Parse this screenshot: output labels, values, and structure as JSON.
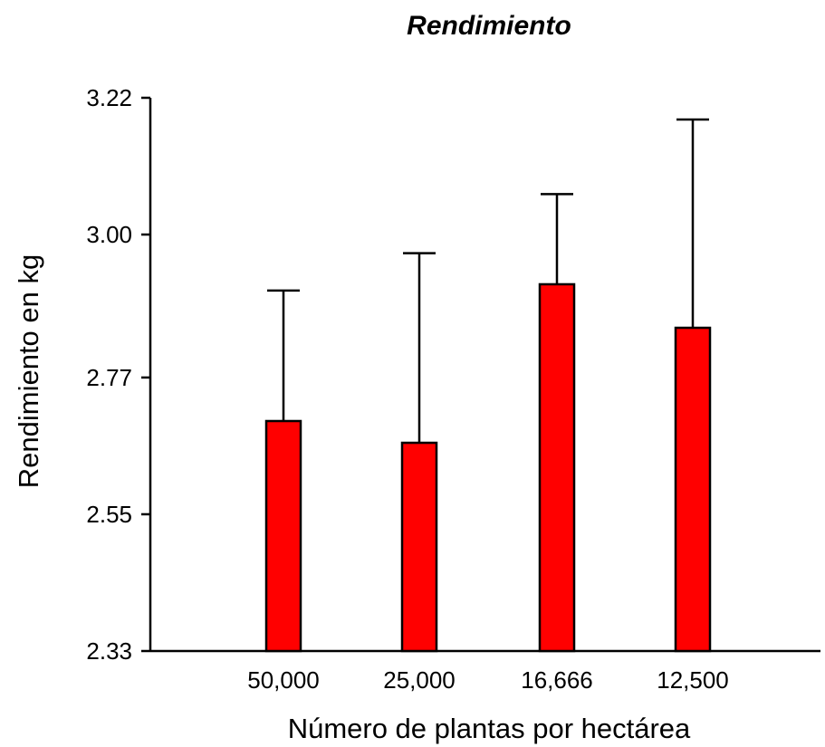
{
  "chart_data": {
    "type": "bar",
    "title": "Rendimiento",
    "xlabel": "Número de plantas por hectárea",
    "ylabel": "Rendimiento en kg",
    "categories": [
      "50,000",
      "25,000",
      "16,666",
      "12,500"
    ],
    "values": [
      2.7,
      2.665,
      2.92,
      2.85
    ],
    "error_upper": [
      2.91,
      2.97,
      3.065,
      3.185
    ],
    "ylim": [
      2.33,
      3.22
    ],
    "yticks": [
      "2.33",
      "2.55",
      "2.77",
      "3.00",
      "3.22"
    ],
    "ytick_values": [
      2.33,
      2.55,
      2.77,
      3.0,
      3.22
    ],
    "bar_color": "#ff0000",
    "grid": false,
    "legend": "none"
  }
}
